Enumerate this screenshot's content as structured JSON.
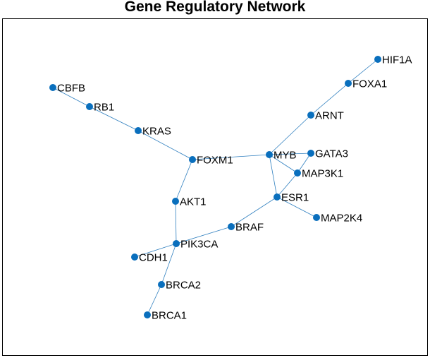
{
  "title": "Gene Regulatory Network",
  "colors": {
    "edge": "#2f7fbf",
    "node": "#0a6fbd",
    "frame": "#000000"
  },
  "graph": {
    "nodes": [
      {
        "id": "HIF1A"
      },
      {
        "id": "FOXA1"
      },
      {
        "id": "ARNT"
      },
      {
        "id": "CBFB"
      },
      {
        "id": "RB1"
      },
      {
        "id": "KRAS"
      },
      {
        "id": "FOXM1"
      },
      {
        "id": "MYB"
      },
      {
        "id": "GATA3"
      },
      {
        "id": "MAP3K1"
      },
      {
        "id": "ESR1"
      },
      {
        "id": "MAP2K4"
      },
      {
        "id": "AKT1"
      },
      {
        "id": "BRAF"
      },
      {
        "id": "PIK3CA"
      },
      {
        "id": "CDH1"
      },
      {
        "id": "BRCA2"
      },
      {
        "id": "BRCA1"
      }
    ],
    "edges": [
      [
        "HIF1A",
        "FOXA1"
      ],
      [
        "FOXA1",
        "ARNT"
      ],
      [
        "ARNT",
        "MYB"
      ],
      [
        "CBFB",
        "RB1"
      ],
      [
        "RB1",
        "KRAS"
      ],
      [
        "KRAS",
        "FOXM1"
      ],
      [
        "FOXM1",
        "MYB"
      ],
      [
        "FOXM1",
        "AKT1"
      ],
      [
        "MYB",
        "GATA3"
      ],
      [
        "MYB",
        "MAP3K1"
      ],
      [
        "MYB",
        "ESR1"
      ],
      [
        "GATA3",
        "MAP3K1"
      ],
      [
        "MAP3K1",
        "ESR1"
      ],
      [
        "ESR1",
        "MAP2K4"
      ],
      [
        "ESR1",
        "BRAF"
      ],
      [
        "AKT1",
        "PIK3CA"
      ],
      [
        "BRAF",
        "PIK3CA"
      ],
      [
        "PIK3CA",
        "CDH1"
      ],
      [
        "PIK3CA",
        "BRCA2"
      ],
      [
        "BRCA2",
        "BRCA1"
      ]
    ]
  }
}
